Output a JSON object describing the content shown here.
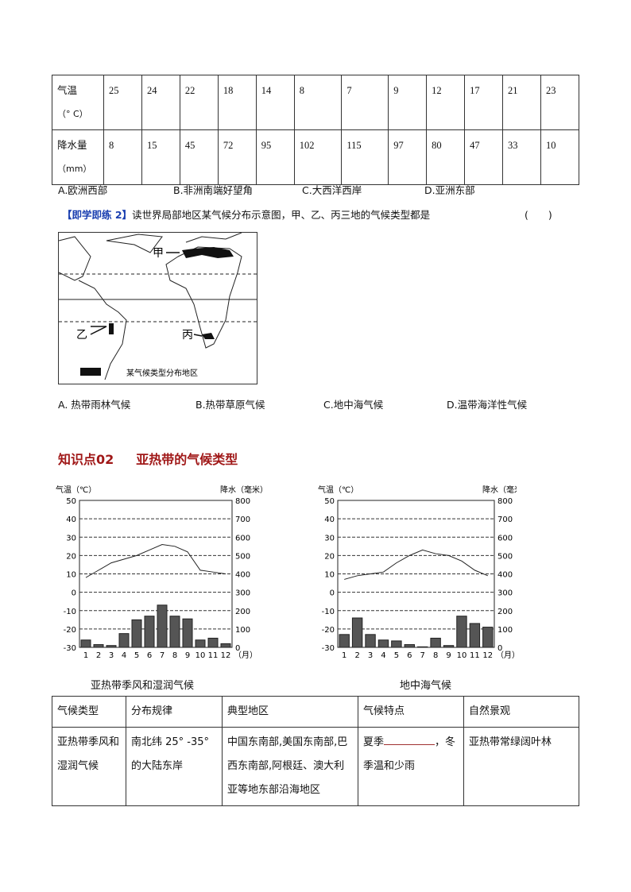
{
  "table1": {
    "rows": [
      {
        "label": "气温",
        "unit": "（° C）",
        "values": [
          "25",
          "24",
          "22",
          "18",
          "14",
          "8",
          "7",
          "9",
          "12",
          "17",
          "21",
          "23"
        ]
      },
      {
        "label": "降水量",
        "unit": "（mm）",
        "values": [
          "8",
          "15",
          "45",
          "72",
          "95",
          "102",
          "115",
          "97",
          "80",
          "47",
          "33",
          "10"
        ]
      }
    ]
  },
  "q1_options": [
    "A.欧洲西部",
    "B.非洲南端好望角",
    "C.大西洋西岸",
    "D.亚洲东部"
  ],
  "q2": {
    "tag": "【即学即练 2】",
    "text": "读世界局部地区某气候分布示意图，甲、乙、丙三地的气候类型都是",
    "paren": "(　　)"
  },
  "map": {
    "labels": {
      "jia": "甲",
      "yi": "乙",
      "bing": "丙"
    },
    "legend": "某气候类型分布地区"
  },
  "q2_options": [
    "A. 热带雨林气候",
    "B.热带草原气候",
    "C.地中海气候",
    "D.温带海洋性气候"
  ],
  "section": {
    "number": "知识点02",
    "title": "亚热带的气候类型"
  },
  "chart_data": [
    {
      "type": "bar+line",
      "title": "亚热带季风和湿润气候",
      "ylabel_left": "气温（℃）",
      "ylabel_right": "降水（毫米）",
      "xlabel": "（月）",
      "categories": [
        "1",
        "2",
        "3",
        "4",
        "5",
        "6",
        "7",
        "8",
        "9",
        "10",
        "11",
        "12"
      ],
      "temp_ticks": [
        "50",
        "40",
        "30",
        "20",
        "10",
        "0",
        "-10",
        "-20",
        "-30"
      ],
      "precip_ticks": [
        "800",
        "700",
        "600",
        "500",
        "400",
        "300",
        "200",
        "100",
        "0"
      ],
      "ylim_temp": [
        -30,
        50
      ],
      "ylim_precip": [
        0,
        800
      ],
      "temperature": [
        8,
        12,
        16,
        18,
        20,
        23,
        26,
        25,
        22,
        12,
        11,
        10
      ],
      "precipitation": [
        40,
        15,
        10,
        75,
        150,
        170,
        230,
        170,
        155,
        40,
        50,
        20
      ]
    },
    {
      "type": "bar+line",
      "title": "地中海气候",
      "ylabel_left": "气温（℃）",
      "ylabel_right": "降水（毫米）",
      "xlabel": "（月）",
      "categories": [
        "1",
        "2",
        "3",
        "4",
        "5",
        "6",
        "7",
        "8",
        "9",
        "10",
        "11",
        "12"
      ],
      "temp_ticks": [
        "50",
        "40",
        "30",
        "20",
        "10",
        "0",
        "-10",
        "-20",
        "-30"
      ],
      "precip_ticks": [
        "800",
        "700",
        "600",
        "500",
        "400",
        "300",
        "200",
        "100",
        "0"
      ],
      "ylim_temp": [
        -30,
        50
      ],
      "ylim_precip": [
        0,
        800
      ],
      "temperature": [
        7,
        9,
        10,
        11,
        16,
        20,
        23,
        21,
        20,
        17,
        12,
        9
      ],
      "precipitation": [
        70,
        160,
        70,
        40,
        35,
        15,
        3,
        50,
        10,
        170,
        130,
        110
      ]
    }
  ],
  "table2": {
    "headers": [
      "气候类型",
      "分布规律",
      "典型地区",
      "气候特点",
      "自然景观"
    ],
    "row": {
      "type": "亚热带季风和湿润气候",
      "distribution": "南北纬 25° -35° 的大陆东岸",
      "regions": "中国东南部,美国东南部,巴西东南部,阿根廷、澳大利亚等地东部沿海地区",
      "feature_pre": "夏季",
      "feature_post": "，冬季温和少雨",
      "landscape": "亚热带常绿阔叶林"
    }
  }
}
